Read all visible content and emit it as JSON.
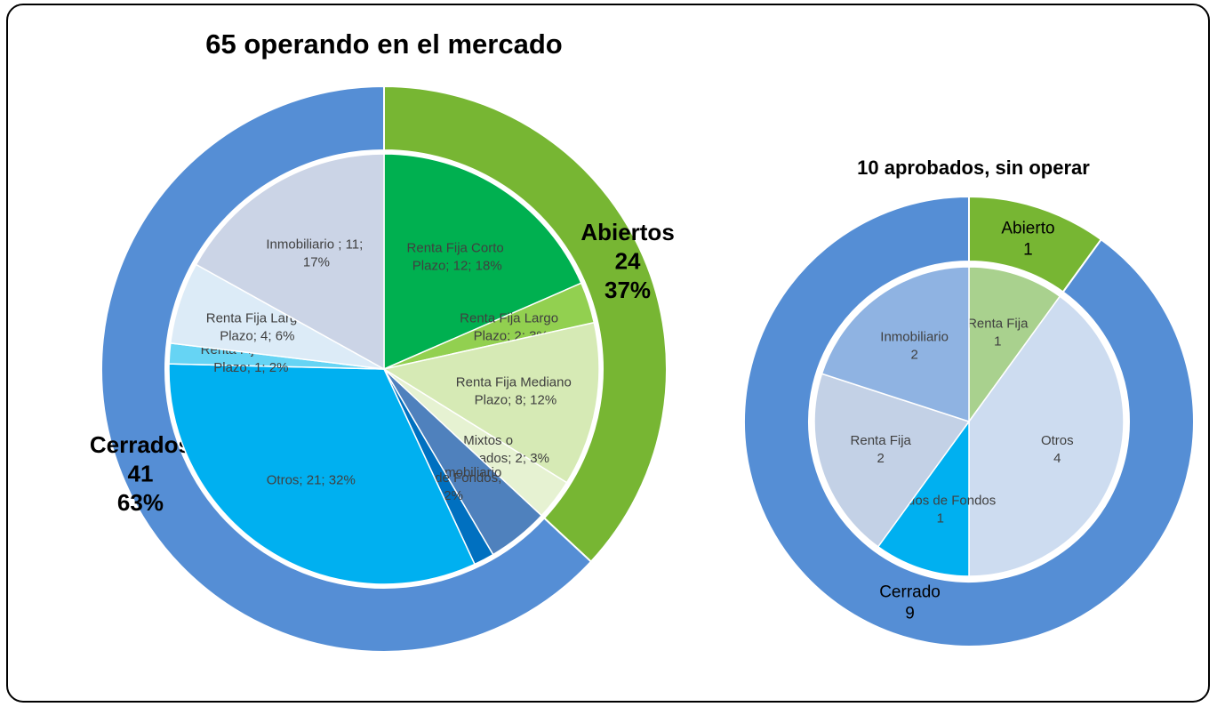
{
  "chart_data": [
    {
      "type": "sunburst",
      "title": "65 operando en el mercado",
      "outer": {
        "names": [
          "Abiertos",
          "Cerrados"
        ],
        "values": [
          24,
          41
        ],
        "value_labels": [
          "37%",
          "63%"
        ],
        "colors": [
          "#77b633",
          "#558ed5"
        ]
      },
      "inner": {
        "labels": [
          "Renta Fija Corto Plazo; 12; 18%",
          "Renta Fija Largo Plazo; 2; 3%",
          "Renta Fija Mediano Plazo; 8; 12%",
          "Mixtos o Balanceados; 2; 3%",
          "Inmobiliario",
          "Fondos de Fondos; 1; 2%",
          "Otros; 21; 32%",
          "Renta Fija Corto Plazo; 1; 2%",
          "Renta Fija Largo Plazo; 4; 6%",
          "Inmobiliario ; 11; 17%"
        ],
        "values": [
          12,
          2,
          8,
          2,
          3,
          1,
          21,
          1,
          4,
          11
        ],
        "colors": [
          "#00b050",
          "#92d050",
          "#d6eab5",
          "#e6f2d2",
          "#4f81bd",
          "#0070c0",
          "#00b0f0",
          "#66d4f4",
          "#dcebf7",
          "#cbd4e6"
        ]
      }
    },
    {
      "type": "sunburst",
      "title": "10 aprobados, sin operar",
      "outer": {
        "names": [
          "Abierto",
          "Cerrado"
        ],
        "values": [
          1,
          9
        ],
        "colors": [
          "#77b633",
          "#558ed5"
        ]
      },
      "inner": {
        "names": [
          "Renta Fija",
          "Otros",
          "Fondos de Fondos",
          "Renta Fija",
          "Inmobiliario"
        ],
        "values": [
          1,
          4,
          1,
          2,
          2
        ],
        "colors": [
          "#a9d18e",
          "#cddcf0",
          "#00b0f0",
          "#c3d1e6",
          "#8fb3e2"
        ]
      }
    }
  ]
}
